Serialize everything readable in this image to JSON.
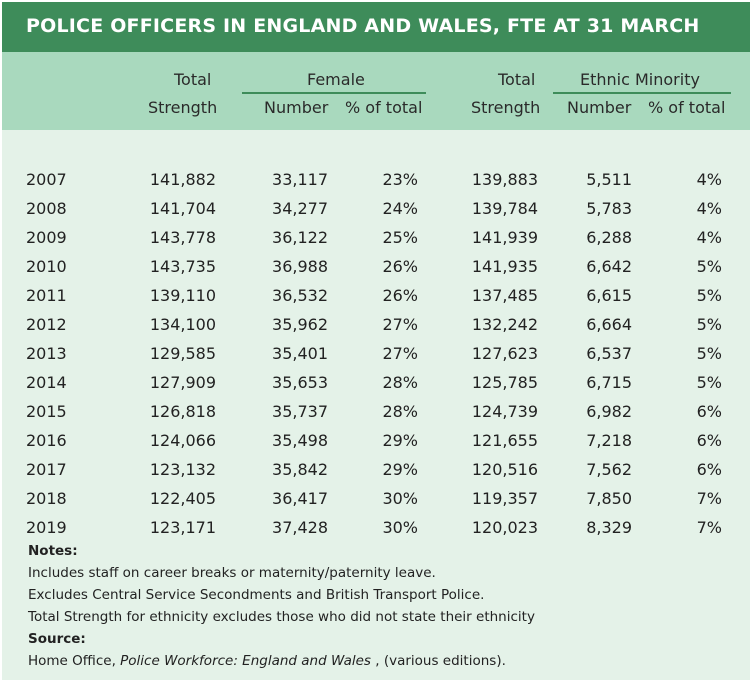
{
  "title": "POLICE OFFICERS IN ENGLAND AND WALES, FTE AT 31 MARCH",
  "headers": {
    "total1_top": "Total",
    "total1_bottom": "Strength",
    "female_group": "Female",
    "female_number": "Number",
    "female_pct": "% of total",
    "total2_top": "Total",
    "total2_bottom": "Strength",
    "ethnic_group": "Ethnic Minority",
    "ethnic_number": "Number",
    "ethnic_pct": "% of total"
  },
  "rows": [
    {
      "year": "2007",
      "total": "141,882",
      "female_number": "33,117",
      "female_pct": "23%",
      "total_eth": "139,883",
      "eth_number": "5,511",
      "eth_pct": "4%"
    },
    {
      "year": "2008",
      "total": "141,704",
      "female_number": "34,277",
      "female_pct": "24%",
      "total_eth": "139,784",
      "eth_number": "5,783",
      "eth_pct": "4%"
    },
    {
      "year": "2009",
      "total": "143,778",
      "female_number": "36,122",
      "female_pct": "25%",
      "total_eth": "141,939",
      "eth_number": "6,288",
      "eth_pct": "4%"
    },
    {
      "year": "2010",
      "total": "143,735",
      "female_number": "36,988",
      "female_pct": "26%",
      "total_eth": "141,935",
      "eth_number": "6,642",
      "eth_pct": "5%"
    },
    {
      "year": "2011",
      "total": "139,110",
      "female_number": "36,532",
      "female_pct": "26%",
      "total_eth": "137,485",
      "eth_number": "6,615",
      "eth_pct": "5%"
    },
    {
      "year": "2012",
      "total": "134,100",
      "female_number": "35,962",
      "female_pct": "27%",
      "total_eth": "132,242",
      "eth_number": "6,664",
      "eth_pct": "5%"
    },
    {
      "year": "2013",
      "total": "129,585",
      "female_number": "35,401",
      "female_pct": "27%",
      "total_eth": "127,623",
      "eth_number": "6,537",
      "eth_pct": "5%"
    },
    {
      "year": "2014",
      "total": "127,909",
      "female_number": "35,653",
      "female_pct": "28%",
      "total_eth": "125,785",
      "eth_number": "6,715",
      "eth_pct": "5%"
    },
    {
      "year": "2015",
      "total": "126,818",
      "female_number": "35,737",
      "female_pct": "28%",
      "total_eth": "124,739",
      "eth_number": "6,982",
      "eth_pct": "6%"
    },
    {
      "year": "2016",
      "total": "124,066",
      "female_number": "35,498",
      "female_pct": "29%",
      "total_eth": "121,655",
      "eth_number": "7,218",
      "eth_pct": "6%"
    },
    {
      "year": "2017",
      "total": "123,132",
      "female_number": "35,842",
      "female_pct": "29%",
      "total_eth": "120,516",
      "eth_number": "7,562",
      "eth_pct": "6%"
    },
    {
      "year": "2018",
      "total": "122,405",
      "female_number": "36,417",
      "female_pct": "30%",
      "total_eth": "119,357",
      "eth_number": "7,850",
      "eth_pct": "7%"
    },
    {
      "year": "2019",
      "total": "123,171",
      "female_number": "37,428",
      "female_pct": "30%",
      "total_eth": "120,023",
      "eth_number": "8,329",
      "eth_pct": "7%"
    }
  ],
  "notes": {
    "heading": "Notes:",
    "lines": [
      "Includes staff on career breaks or maternity/paternity leave.",
      "Excludes Central Service Secondments and British Transport Police.",
      "Total Strength for ethnicity excludes those who did not state their ethnicity"
    ]
  },
  "source": {
    "heading": "Source:",
    "prefix": "Home Office, ",
    "italic": "Police Workforce: England and Wales",
    "suffix": " , (various editions)."
  },
  "colors": {
    "title_bar": "#3e8c5a",
    "header_band": "#a9d9be",
    "body_background": "#e4f2e8"
  }
}
